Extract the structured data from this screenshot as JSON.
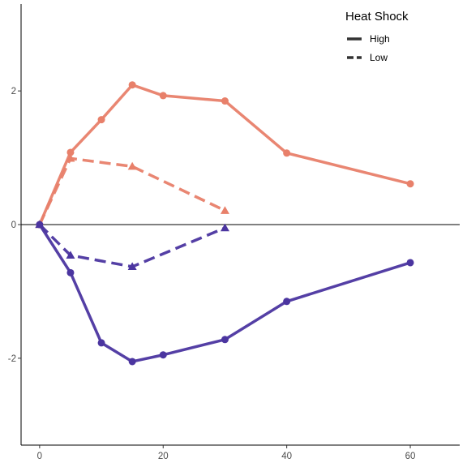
{
  "chart_data": {
    "type": "line",
    "title": "",
    "xlabel": "",
    "ylabel": "",
    "xlim": [
      -3,
      68
    ],
    "ylim": [
      -3.3,
      3.3
    ],
    "x_ticks": [
      0,
      20,
      40,
      60
    ],
    "x_tick_labels": [
      "0",
      "20",
      "40",
      "60"
    ],
    "y_ticks": [
      -2,
      0,
      2
    ],
    "y_tick_labels": [
      "-2",
      "0",
      "2"
    ],
    "reference_line_y": 0,
    "grid": false,
    "legend": {
      "title": "Heat Shock",
      "position": "top-right",
      "entries": [
        {
          "label": "High",
          "linetype": "solid"
        },
        {
          "label": "Low",
          "linetype": "dashed"
        }
      ]
    },
    "series": [
      {
        "group": "orange",
        "heat_shock": "High",
        "color": "#e8806a",
        "marker": "circle",
        "linetype": "solid",
        "x": [
          0,
          5,
          10,
          15,
          20,
          30,
          40,
          60
        ],
        "y": [
          0,
          1.08,
          1.57,
          2.09,
          1.93,
          1.85,
          1.07,
          0.61
        ]
      },
      {
        "group": "orange",
        "heat_shock": "Low",
        "color": "#e8806a",
        "marker": "triangle",
        "linetype": "dashed",
        "x": [
          0,
          5,
          15,
          30
        ],
        "y": [
          0,
          0.99,
          0.87,
          0.21
        ]
      },
      {
        "group": "purple",
        "heat_shock": "High",
        "color": "#4b35a0",
        "marker": "circle",
        "linetype": "solid",
        "x": [
          0,
          5,
          10,
          15,
          20,
          30,
          40,
          60
        ],
        "y": [
          0,
          -0.72,
          -1.77,
          -2.05,
          -1.95,
          -1.72,
          -1.15,
          -0.57
        ]
      },
      {
        "group": "purple",
        "heat_shock": "Low",
        "color": "#4b35a0",
        "marker": "triangle",
        "linetype": "dashed",
        "x": [
          0,
          5,
          15,
          30
        ],
        "y": [
          0,
          -0.46,
          -0.63,
          -0.05
        ]
      }
    ]
  }
}
